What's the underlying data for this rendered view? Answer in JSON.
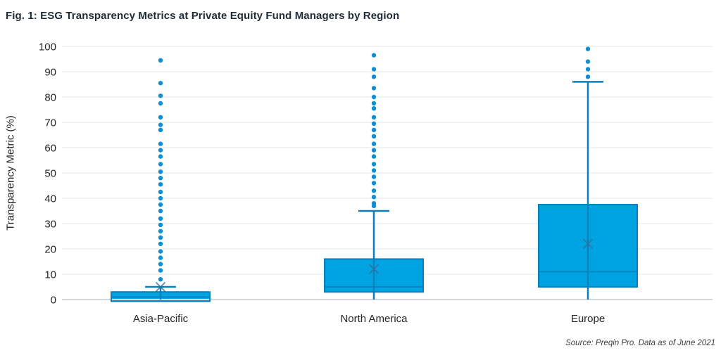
{
  "header": {
    "title": "Fig. 1: ESG Transparency Metrics at Private Equity Fund Managers by Region"
  },
  "footer": {
    "source_note": "Source: Preqin Pro. Data as of June 2021"
  },
  "colors": {
    "box_fill": "#00A3E2",
    "box_stroke": "#0C7EBB",
    "dot": "#0E8FD5",
    "mean_marker": "#336F96",
    "grid": "#E3E7EB",
    "zero_line": "#D3D9DE",
    "title_text": "#1F2B38",
    "axis_text": "#262626"
  },
  "chart_data": {
    "type": "boxplot",
    "title": "Fig. 1: ESG Transparency Metrics at Private Equity Fund Managers by Region",
    "ylabel": "Transparency Metric (%)",
    "xlabel": "",
    "ylim": [
      0,
      100
    ],
    "yticks": [
      0,
      10,
      20,
      30,
      40,
      50,
      60,
      70,
      80,
      90,
      100
    ],
    "grid": true,
    "legend": false,
    "categories": [
      "Asia-Pacific",
      "North America",
      "Europe"
    ],
    "series": [
      {
        "category": "Asia-Pacific",
        "q1": 0,
        "median": 1,
        "q3": 3,
        "whisker_low": 0,
        "whisker_high": 5,
        "mean": 5,
        "outliers": [
          94.5,
          85.5,
          80.5,
          77.5,
          72,
          69,
          67,
          61.5,
          59,
          56.5,
          53.5,
          50.5,
          48,
          45.5,
          42.5,
          40,
          37.5,
          35,
          32,
          29.5,
          27,
          24.5,
          22,
          19,
          16.5,
          14,
          11.5,
          8
        ]
      },
      {
        "category": "North America",
        "q1": 3,
        "median": 5,
        "q3": 16,
        "whisker_low": 0,
        "whisker_high": 35,
        "mean": 12,
        "outliers": [
          96.5,
          91,
          88,
          83.5,
          80,
          77.5,
          75.5,
          72,
          69.5,
          67,
          64.5,
          61.5,
          59,
          56.5,
          53.5,
          51,
          48.5,
          46,
          43,
          40.5,
          38,
          37
        ]
      },
      {
        "category": "Europe",
        "q1": 5,
        "median": 11,
        "q3": 37.5,
        "whisker_low": 0,
        "whisker_high": 86,
        "mean": 22,
        "outliers": [
          99,
          94,
          91,
          88
        ]
      }
    ],
    "source_note": "Source: Preqin Pro. Data as of June 2021"
  }
}
